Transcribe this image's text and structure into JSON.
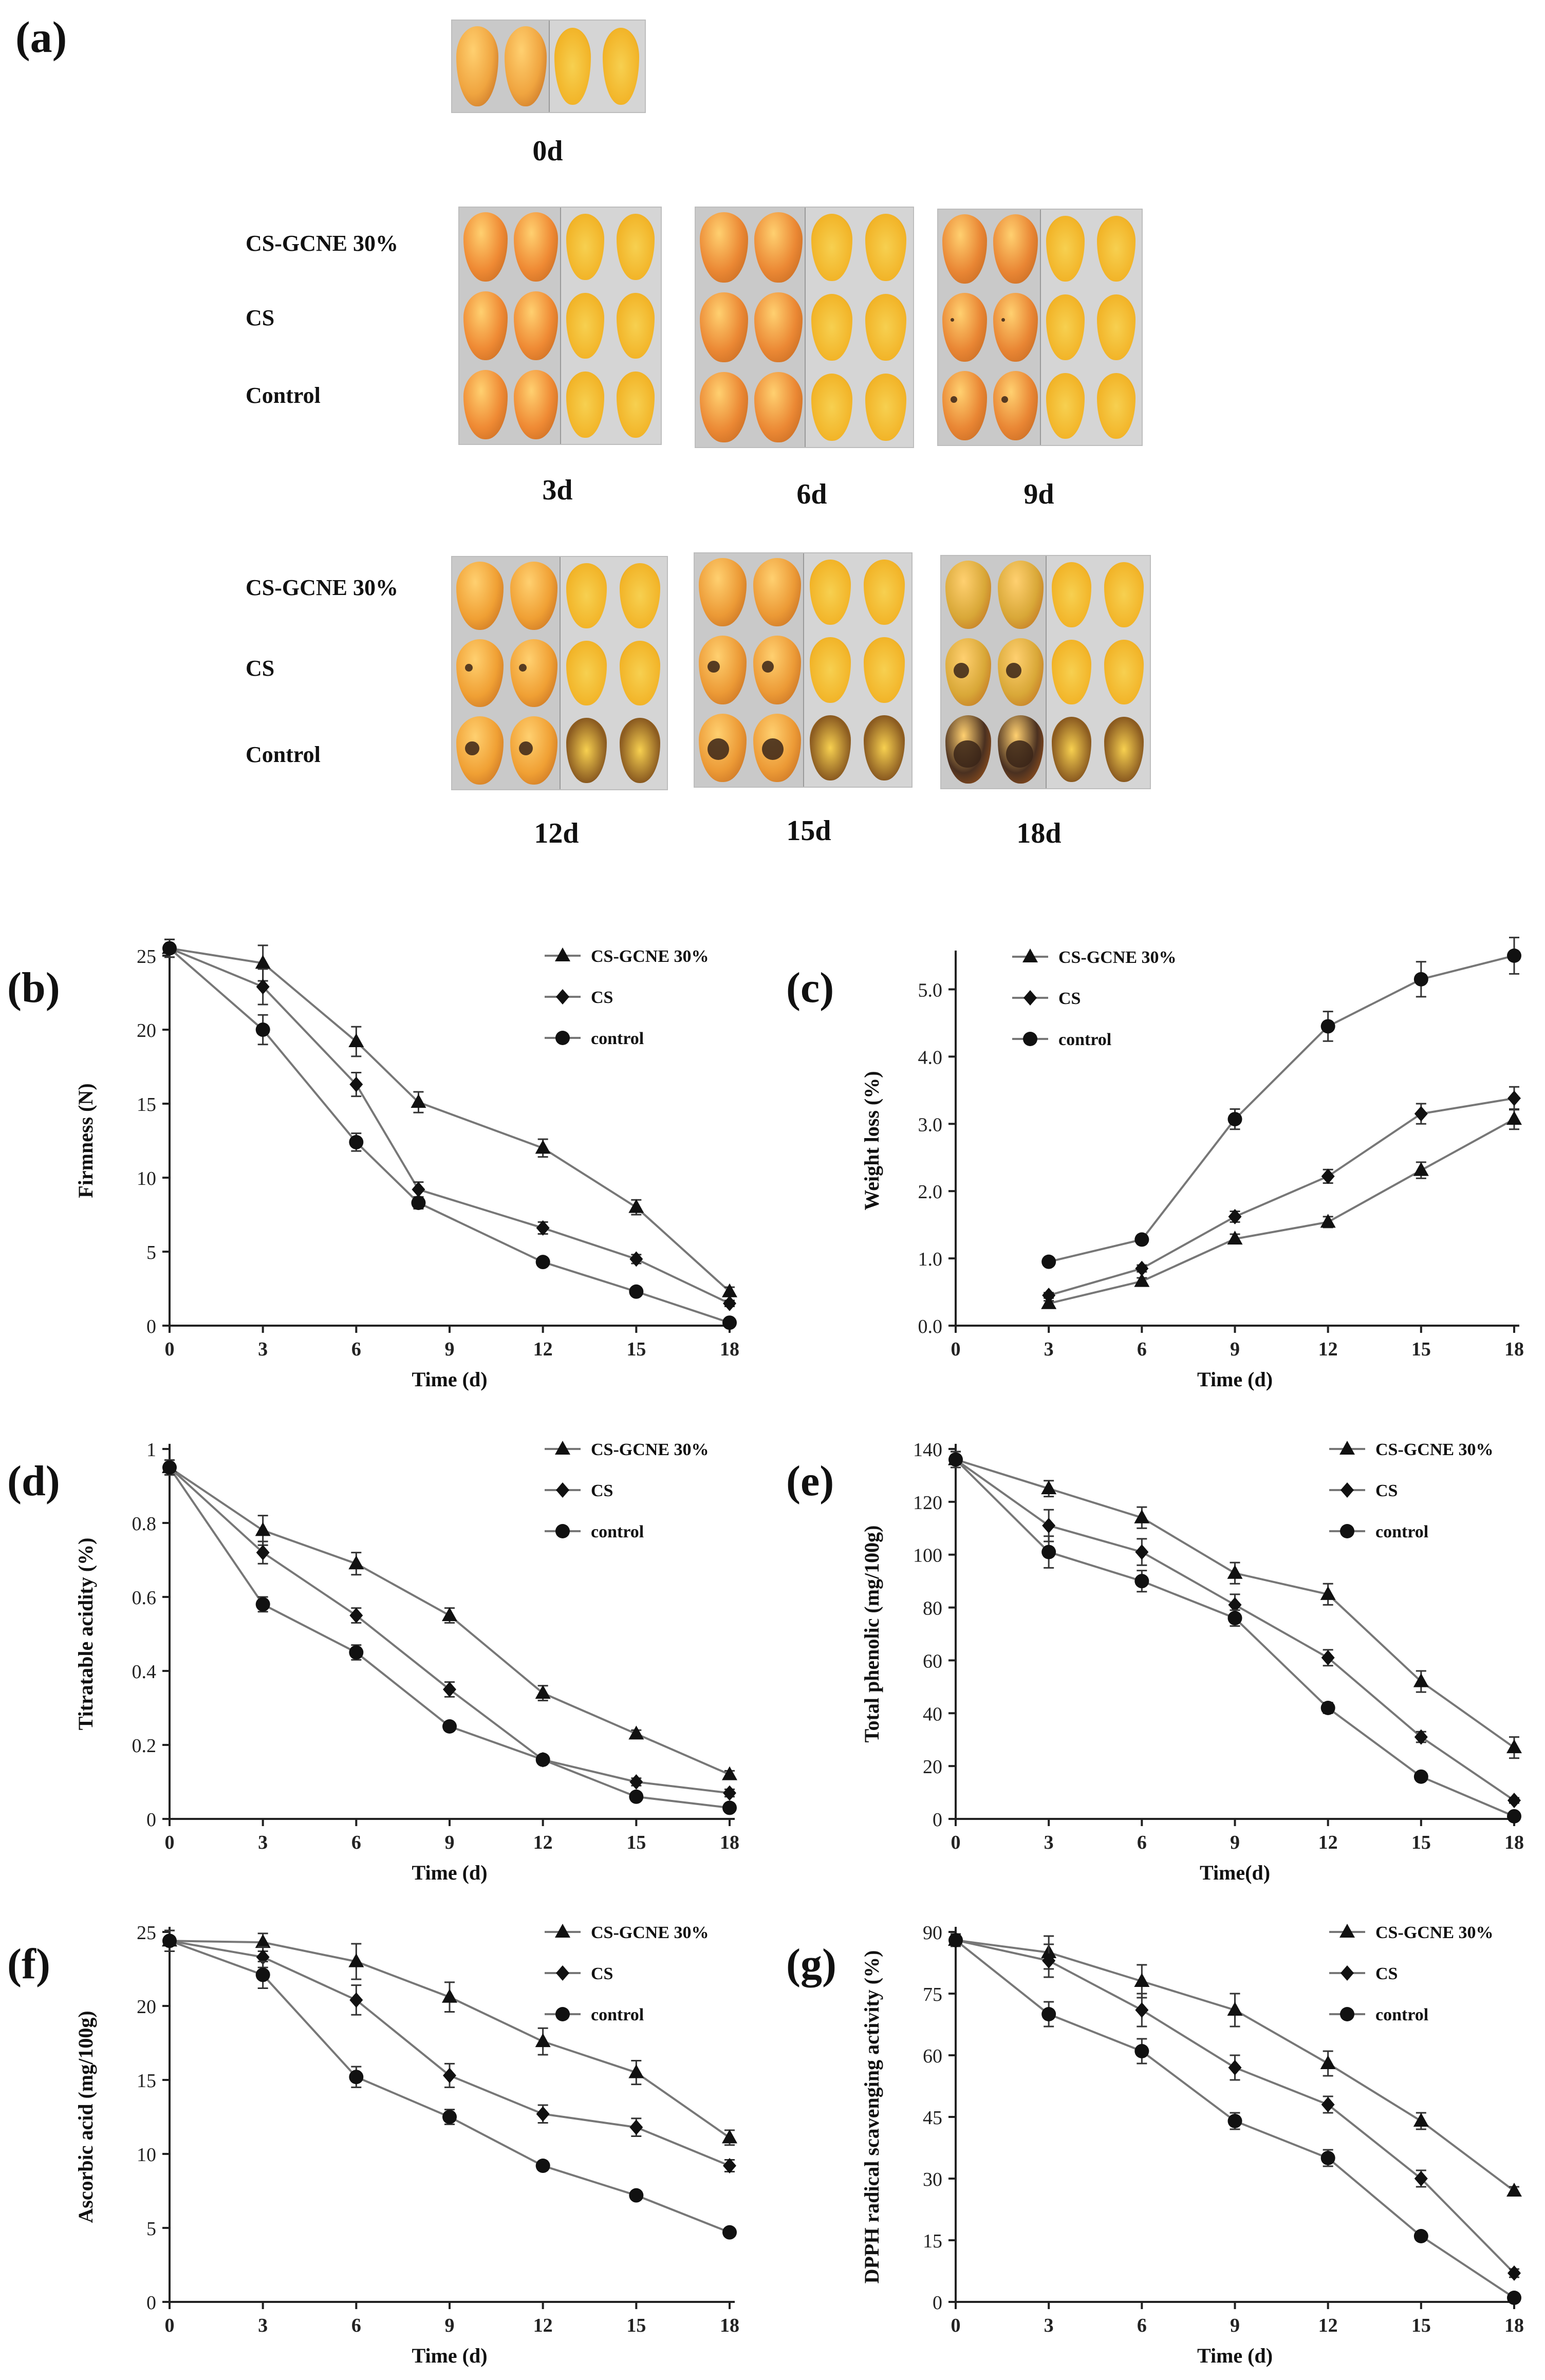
{
  "figure": {
    "panel_a_label": "(a)",
    "row_labels": [
      "CS-GCNE 30%",
      "CS",
      "Control"
    ],
    "days": [
      "0d",
      "3d",
      "6d",
      "9d",
      "12d",
      "15d",
      "18d"
    ]
  },
  "chart_data": [
    {
      "id": "b",
      "panel_label": "(b)",
      "type": "line",
      "ylabel": "Firmness (N)",
      "xlabel": "Time (d)",
      "ylim": [
        0,
        25
      ],
      "yticks": [
        0,
        5,
        10,
        15,
        20,
        25
      ],
      "ytick_labels": [
        "0",
        "5",
        "10",
        "15",
        "20",
        "25"
      ],
      "xlim": [
        0,
        18
      ],
      "xticks": [
        0,
        3,
        6,
        9,
        12,
        15,
        18
      ],
      "series": [
        {
          "name": "CS-GCNE 30%",
          "marker": "triangle",
          "x": [
            0,
            3,
            6,
            8,
            12,
            15,
            18
          ],
          "y": [
            25.5,
            24.5,
            19.2,
            15.1,
            12.0,
            8.0,
            2.3
          ],
          "err": [
            0.6,
            1.2,
            1.0,
            0.7,
            0.6,
            0.5,
            0.3
          ]
        },
        {
          "name": "CS",
          "marker": "diamond",
          "x": [
            0,
            3,
            6,
            8,
            12,
            15,
            18
          ],
          "y": [
            25.5,
            22.9,
            16.3,
            9.2,
            6.6,
            4.5,
            1.5
          ],
          "err": [
            0.6,
            1.2,
            0.8,
            0.5,
            0.4,
            0.3,
            0.2
          ]
        },
        {
          "name": "control",
          "marker": "circle",
          "x": [
            0,
            3,
            6,
            8,
            12,
            15,
            18
          ],
          "y": [
            25.5,
            20.0,
            12.4,
            8.3,
            4.3,
            2.3,
            0.2
          ],
          "err": [
            0.6,
            1.0,
            0.6,
            0.4,
            0.3,
            0.2,
            0.1
          ]
        }
      ]
    },
    {
      "id": "c",
      "panel_label": "(c)",
      "type": "line",
      "ylabel": "Weight loss (%)",
      "xlabel": "Time (d)",
      "ylim": [
        0,
        5.5
      ],
      "yticks": [
        0,
        1,
        2,
        3,
        4,
        5
      ],
      "ytick_labels": [
        "0.0",
        "1.0",
        "2.0",
        "3.0",
        "4.0",
        "5.0"
      ],
      "xlim": [
        0,
        18
      ],
      "xticks": [
        0,
        3,
        6,
        9,
        12,
        15,
        18
      ],
      "series": [
        {
          "name": "CS-GCNE 30%",
          "marker": "triangle",
          "x": [
            3,
            6,
            9,
            12,
            15,
            18
          ],
          "y": [
            0.33,
            0.66,
            1.29,
            1.54,
            2.31,
            3.07
          ],
          "err": [
            0.04,
            0.05,
            0.07,
            0.08,
            0.12,
            0.15
          ]
        },
        {
          "name": "CS",
          "marker": "diamond",
          "x": [
            3,
            6,
            9,
            12,
            15,
            18
          ],
          "y": [
            0.45,
            0.85,
            1.62,
            2.22,
            3.15,
            3.38
          ],
          "err": [
            0.04,
            0.05,
            0.08,
            0.1,
            0.15,
            0.17
          ]
        },
        {
          "name": "control",
          "marker": "circle",
          "x": [
            3,
            6,
            9,
            12,
            15,
            18
          ],
          "y": [
            0.95,
            1.28,
            3.07,
            4.45,
            5.15,
            5.5
          ],
          "err": [
            0.04,
            0.05,
            0.15,
            0.22,
            0.26,
            0.27
          ]
        }
      ]
    },
    {
      "id": "d",
      "panel_label": "(d)",
      "type": "line",
      "ylabel": "Titratable acidity (%)",
      "xlabel": "Time (d)",
      "ylim": [
        0,
        1
      ],
      "yticks": [
        0,
        0.2,
        0.4,
        0.6,
        0.8,
        1
      ],
      "ytick_labels": [
        "0",
        "0.2",
        "0.4",
        "0.6",
        "0.8",
        "1"
      ],
      "xlim": [
        0,
        18
      ],
      "xticks": [
        0,
        3,
        6,
        9,
        12,
        15,
        18
      ],
      "series": [
        {
          "name": "CS-GCNE 30%",
          "marker": "triangle",
          "x": [
            0,
            3,
            6,
            9,
            12,
            15,
            18
          ],
          "y": [
            0.95,
            0.78,
            0.69,
            0.55,
            0.34,
            0.23,
            0.12
          ],
          "err": [
            0.02,
            0.04,
            0.03,
            0.02,
            0.02,
            0.01,
            0.01
          ]
        },
        {
          "name": "CS",
          "marker": "diamond",
          "x": [
            0,
            3,
            6,
            9,
            12,
            15,
            18
          ],
          "y": [
            0.95,
            0.72,
            0.55,
            0.35,
            0.16,
            0.1,
            0.07
          ],
          "err": [
            0.02,
            0.03,
            0.02,
            0.02,
            0.01,
            0.01,
            0.01
          ]
        },
        {
          "name": "control",
          "marker": "circle",
          "x": [
            0,
            3,
            6,
            9,
            12,
            15,
            18
          ],
          "y": [
            0.95,
            0.58,
            0.45,
            0.25,
            0.16,
            0.06,
            0.03
          ],
          "err": [
            0.02,
            0.02,
            0.02,
            0.01,
            0.01,
            0.01,
            0.01
          ]
        }
      ]
    },
    {
      "id": "e",
      "panel_label": "(e)",
      "type": "line",
      "ylabel": "Total phenolic (mg/100g)",
      "xlabel": "Time(d)",
      "ylim": [
        0,
        140
      ],
      "yticks": [
        0,
        20,
        40,
        60,
        80,
        100,
        120,
        140
      ],
      "ytick_labels": [
        "0",
        "20",
        "40",
        "60",
        "80",
        "100",
        "120",
        "140"
      ],
      "xlim": [
        0,
        18
      ],
      "xticks": [
        0,
        3,
        6,
        9,
        12,
        15,
        18
      ],
      "series": [
        {
          "name": "CS-GCNE 30%",
          "marker": "triangle",
          "x": [
            0,
            3,
            6,
            9,
            12,
            15,
            18
          ],
          "y": [
            136,
            125,
            114,
            93,
            85,
            52,
            27
          ],
          "err": [
            3,
            3,
            4,
            4,
            4,
            4,
            4
          ]
        },
        {
          "name": "CS",
          "marker": "diamond",
          "x": [
            0,
            3,
            6,
            9,
            12,
            15,
            18
          ],
          "y": [
            136,
            111,
            101,
            81,
            61,
            31,
            7
          ],
          "err": [
            3,
            6,
            5,
            4,
            3,
            2,
            1
          ]
        },
        {
          "name": "control",
          "marker": "circle",
          "x": [
            0,
            3,
            6,
            9,
            12,
            15,
            18
          ],
          "y": [
            136,
            101,
            90,
            76,
            42,
            16,
            1
          ],
          "err": [
            3,
            6,
            4,
            3,
            2,
            1,
            1
          ]
        }
      ]
    },
    {
      "id": "f",
      "panel_label": "(f)",
      "type": "line",
      "ylabel": "Ascorbic acid (mg/100g)",
      "xlabel": "Time (d)",
      "ylim": [
        0,
        25
      ],
      "yticks": [
        0,
        5,
        10,
        15,
        20,
        25
      ],
      "ytick_labels": [
        "0",
        "5",
        "10",
        "15",
        "20",
        "25"
      ],
      "xlim": [
        0,
        18
      ],
      "xticks": [
        0,
        3,
        6,
        9,
        12,
        15,
        18
      ],
      "series": [
        {
          "name": "CS-GCNE 30%",
          "marker": "triangle",
          "x": [
            0,
            3,
            6,
            9,
            12,
            15,
            18
          ],
          "y": [
            24.4,
            24.3,
            23.0,
            20.6,
            17.6,
            15.5,
            11.1
          ],
          "err": [
            0.7,
            0.6,
            1.2,
            1.0,
            0.9,
            0.8,
            0.5
          ]
        },
        {
          "name": "CS",
          "marker": "diamond",
          "x": [
            0,
            3,
            6,
            9,
            12,
            15,
            18
          ],
          "y": [
            24.4,
            23.3,
            20.4,
            15.3,
            12.7,
            11.8,
            9.2
          ],
          "err": [
            0.7,
            0.7,
            1.0,
            0.8,
            0.6,
            0.6,
            0.4
          ]
        },
        {
          "name": "control",
          "marker": "circle",
          "x": [
            0,
            3,
            6,
            9,
            12,
            15,
            18
          ],
          "y": [
            24.4,
            22.1,
            15.2,
            12.5,
            9.2,
            7.2,
            4.7
          ],
          "err": [
            0.7,
            0.9,
            0.7,
            0.5,
            0.3,
            0.2,
            0.2
          ]
        }
      ]
    },
    {
      "id": "g",
      "panel_label": "(g)",
      "type": "line",
      "ylabel": "DPPH radical scavenging activity (%)",
      "xlabel": "Time (d)",
      "ylim": [
        0,
        90
      ],
      "yticks": [
        0,
        15,
        30,
        45,
        60,
        75,
        90
      ],
      "ytick_labels": [
        "0",
        "15",
        "30",
        "45",
        "60",
        "75",
        "90"
      ],
      "xlim": [
        0,
        18
      ],
      "xticks": [
        0,
        3,
        6,
        9,
        12,
        15,
        18
      ],
      "series": [
        {
          "name": "CS-GCNE 30%",
          "marker": "triangle",
          "x": [
            0,
            3,
            6,
            9,
            12,
            15,
            18
          ],
          "y": [
            88,
            85,
            78,
            71,
            58,
            44,
            27
          ],
          "err": [
            1.5,
            4,
            4,
            4,
            3,
            2,
            1
          ]
        },
        {
          "name": "CS",
          "marker": "diamond",
          "x": [
            0,
            3,
            6,
            9,
            12,
            15,
            18
          ],
          "y": [
            88,
            83,
            71,
            57,
            48,
            30,
            7
          ],
          "err": [
            1.5,
            4,
            4,
            3,
            2,
            2,
            1
          ]
        },
        {
          "name": "control",
          "marker": "circle",
          "x": [
            0,
            3,
            6,
            9,
            12,
            15,
            18
          ],
          "y": [
            88,
            70,
            61,
            44,
            35,
            16,
            1
          ],
          "err": [
            1.5,
            3,
            3,
            2,
            2,
            1,
            1
          ]
        }
      ]
    }
  ]
}
